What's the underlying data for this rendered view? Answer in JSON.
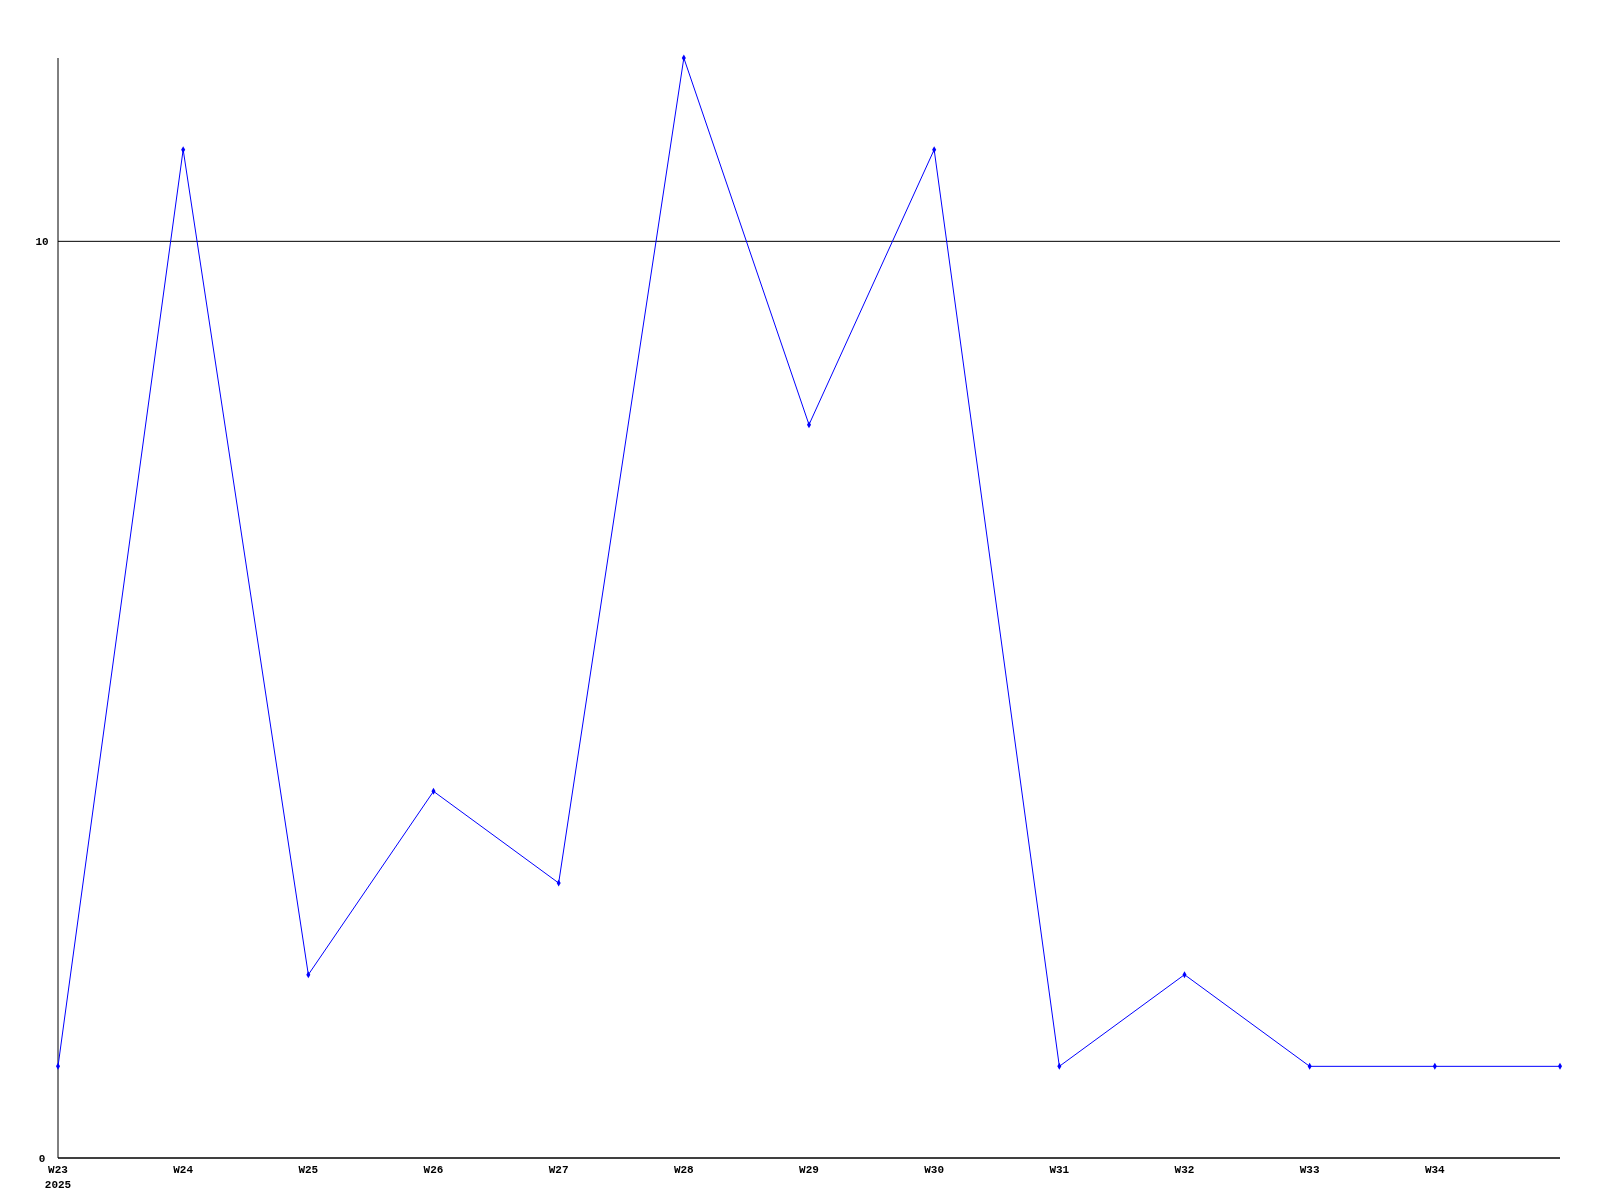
{
  "chart_data": {
    "type": "line",
    "categories": [
      "W23\n2025",
      "W24",
      "W25",
      "W26",
      "W27",
      "W28",
      "W29",
      "W30",
      "W31",
      "W32",
      "W33",
      "W34",
      null
    ],
    "series": [
      {
        "color": "#0000ff",
        "values": [
          1,
          11,
          2,
          4,
          3,
          12,
          8,
          11,
          1,
          2,
          1,
          1,
          1
        ]
      }
    ],
    "ylim": [
      0,
      12
    ],
    "yticks": [
      0,
      10
    ],
    "grid": "y",
    "marker": "diamond",
    "line_style": "solid"
  }
}
